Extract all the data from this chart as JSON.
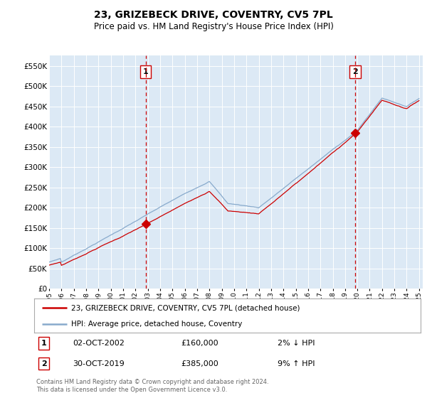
{
  "title": "23, GRIZEBECK DRIVE, COVENTRY, CV5 7PL",
  "subtitle": "Price paid vs. HM Land Registry's House Price Index (HPI)",
  "bg_color": "#dce9f5",
  "line1_color": "#cc0000",
  "line2_color": "#88aacc",
  "vline_color": "#cc0000",
  "sale1_year": 2002.83,
  "sale1_price": 160000,
  "sale2_year": 2019.83,
  "sale2_price": 385000,
  "ylim": [
    0,
    575000
  ],
  "yticks": [
    0,
    50000,
    100000,
    150000,
    200000,
    250000,
    300000,
    350000,
    400000,
    450000,
    500000,
    550000
  ],
  "xlim_start": 1995,
  "xlim_end": 2025.3,
  "legend_line1": "23, GRIZEBECK DRIVE, COVENTRY, CV5 7PL (detached house)",
  "legend_line2": "HPI: Average price, detached house, Coventry",
  "note1_label": "1",
  "note1_date": "02-OCT-2002",
  "note1_price": "£160,000",
  "note1_hpi": "2% ↓ HPI",
  "note2_label": "2",
  "note2_date": "30-OCT-2019",
  "note2_price": "£385,000",
  "note2_hpi": "9% ↑ HPI",
  "footer": "Contains HM Land Registry data © Crown copyright and database right 2024.\nThis data is licensed under the Open Government Licence v3.0."
}
